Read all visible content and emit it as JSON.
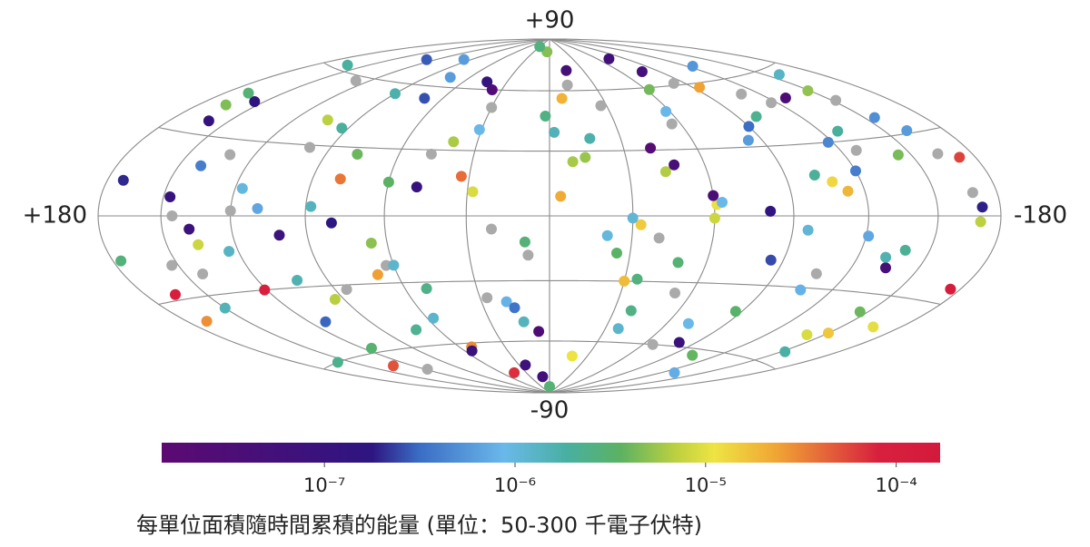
{
  "chart_data": {
    "type": "scatter",
    "projection": "hammer-aitoff",
    "xlim": [
      180,
      -180
    ],
    "ylim": [
      -90,
      90
    ],
    "xticks": [
      {
        "value": 180,
        "label": "+180"
      },
      {
        "value": -180,
        "label": "-180"
      }
    ],
    "yticks": [
      {
        "value": 90,
        "label": "+90"
      },
      {
        "value": -90,
        "label": "-90"
      }
    ],
    "grid": true,
    "xgrid": [
      150,
      120,
      90,
      60,
      30,
      0,
      -30,
      -60,
      -90,
      -120,
      -150
    ],
    "ygrid": [
      60,
      30,
      0,
      -30,
      -60
    ],
    "missing_color": "#aaaaaa",
    "x": [
      172,
      150,
      128,
      101,
      77,
      52,
      31,
      8,
      -15,
      -38,
      -61,
      -84,
      -107,
      -129,
      -152,
      -170,
      165,
      140,
      118,
      93,
      66,
      44,
      19,
      -4,
      -27,
      -49,
      -73,
      -96,
      -118,
      -141,
      -163,
      176,
      155,
      133,
      109,
      85,
      60,
      36,
      13,
      -9,
      -33,
      -56,
      -80,
      -102,
      -124,
      -146,
      -168,
      160,
      136,
      112,
      90,
      68,
      47,
      24,
      2,
      -21,
      -44,
      -66,
      -90,
      -113,
      -135,
      -158,
      168,
      145,
      121,
      97,
      72,
      49,
      27,
      5,
      -18,
      -41,
      -63,
      -87,
      -110,
      -132,
      -155,
      -175,
      158,
      131,
      104,
      80,
      57,
      33,
      11,
      -12,
      -35,
      -58,
      -81,
      -104,
      -127,
      -149,
      170,
      147,
      124,
      99,
      74,
      51,
      28,
      6,
      -17,
      -40,
      -62,
      -85,
      -108,
      -130,
      -152,
      -172,
      162,
      138,
      115,
      88,
      63,
      40,
      16,
      -7,
      -30,
      -53,
      -77,
      -99,
      -121,
      -144,
      -166,
      153,
      127,
      103,
      79,
      55,
      30,
      9,
      -14,
      -37,
      -60,
      -83,
      -106,
      -128,
      -150,
      -171,
      166,
      142,
      117,
      94,
      70,
      45,
      21,
      -2,
      -25,
      -48,
      -71,
      -94,
      -117,
      -139,
      -161,
      0,
      60,
      -60,
      120,
      -120,
      30,
      -30
    ],
    "y": [
      12,
      -35,
      58,
      -8,
      27,
      -62,
      40,
      -18,
      71,
      -44,
      5,
      33,
      -24,
      49,
      -55,
      -2,
      -28,
      19,
      -70,
      38,
      -12,
      64,
      -40,
      9,
      52,
      -21,
      76,
      -6,
      30,
      -48,
      22,
      -15,
      44,
      -66,
      3,
      -32,
      15,
      60,
      -50,
      25,
      -4,
      42,
      -58,
      17,
      67,
      -37,
      8,
      35,
      -11,
      -45,
      55,
      -26,
      28,
      -73,
      47,
      -9,
      20,
      -60,
      39,
      10,
      -20,
      57,
      46,
      0,
      -30,
      74,
      -52,
      13,
      -38,
      82,
      -68,
      31,
      6,
      -42,
      53,
      -16,
      37,
      -25,
      -60,
      24,
      41,
      -3,
      -47,
      18,
      -80,
      63,
      -29,
      48,
      2,
      -63,
      26,
      50,
      -38,
      7,
      -14,
      29,
      65,
      -33,
      11,
      -55,
      36,
      -10,
      59,
      -19,
      14,
      -71,
      45,
      20,
      62,
      -5,
      -58,
      4,
      -22,
      34,
      -43,
      56,
      -1,
      -35,
      68,
      43,
      -8,
      23,
      -41,
      -18,
      71,
      -27,
      16,
      -64,
      51,
      -12,
      27,
      -53,
      9,
      61,
      -31,
      34,
      -46,
      3,
      41,
      -22,
      11,
      -36,
      54,
      -77,
      -6,
      39,
      -17,
      23,
      -49,
      58,
      48,
      -13,
      31,
      -86,
      -22,
      -1,
      2,
      18,
      85,
      -30
    ],
    "c": [
      2e-07,
      1.5e-06,
      null,
      8e-08,
      4e-06,
      3e-05,
      9e-07,
      null,
      5e-08,
      2.5e-06,
      1.2e-05,
      6e-07,
      null,
      3e-08,
      1.8e-06,
      7e-06,
      0.0001,
      4e-07,
      null,
      2e-06,
      5e-06,
      1.3e-07,
      8e-07,
      2.2e-05,
      null,
      3e-06,
      6e-08,
      1.1e-06,
      4.5e-07,
      9e-06,
      null,
      2.8e-06,
      1.6e-07,
      5e-05,
      7e-07,
      null,
      3.5e-06,
      2.4e-08,
      1.4e-06,
      6e-06,
      1.5e-05,
      null,
      9e-08,
      2.1e-06,
      5.5e-07,
      4e-06,
      null,
      1.2e-07,
      8e-06,
      3e-07,
      1.7e-06,
      2.5e-05,
      null,
      7e-08,
      2.6e-06,
      1e-06,
      6.5e-06,
      null,
      3.2e-07,
      1.9e-05,
      4e-08,
      1.3e-06,
      3e-06,
      null,
      8e-05,
      6e-07,
      2.2e-06,
      1e-07,
      null,
      4.8e-06,
      1.1e-05,
      2e-08,
      9e-07,
      3.3e-06,
      null,
      1.6e-06,
      5e-07,
      0.00014,
      2.3e-06,
      null,
      7e-06,
      1.8e-07,
      1.2e-06,
      4e-05,
      6e-08,
      null,
      2.7e-06,
      8.5e-07,
      1.5e-07,
      3.8e-06,
      null,
      5.2e-06,
      2.9e-05,
      1.1e-07,
      1.3e-06,
      null,
      6e-07,
      2.4e-06,
      9e-06,
      3e-08,
      1.7e-06,
      null,
      4.2e-06,
      2.5e-07,
      1.3e-05,
      7.5e-07,
      null,
      5.8e-05,
      1.9e-06,
      8e-08,
      3.1e-06,
      1.4e-06,
      null,
      6.2e-06,
      3.5e-07,
      2e-05,
      1.1e-06,
      null,
      5e-08,
      2.2e-06,
      7e-07,
      4.4e-06,
      1e-05,
      null,
      2.8e-07,
      1.6e-06,
      3.6e-05,
      9.5e-08,
      null,
      2.9e-06,
      5.5e-06,
      1.2e-06,
      3.7e-08,
      null,
      8e-07,
      2e-06,
      1.6e-05,
      1.9e-07,
      4.6e-06,
      null,
      1e-06,
      6.8e-06,
      2.6e-07,
      7e-05,
      null,
      1.5e-06,
      3.4e-06,
      4.5e-08,
      9e-07,
      2.4e-05,
      null,
      2.1e-06,
      5.9e-07,
      3e-06,
      1.2e-06,
      8e-06,
      null,
      4e-07,
      2.7e-06,
      1.8e-05
    ],
    "colorbar": {
      "title": "每單位面積隨時間累積的能量 (單位：50-300 千電子伏特)",
      "log": true,
      "lim": [
        1.4e-08,
        0.00017
      ],
      "ticks": [
        {
          "value": 1e-07,
          "label": "10⁻⁷"
        },
        {
          "value": 1e-06,
          "label": "10⁻⁶"
        },
        {
          "value": 1e-05,
          "label": "10⁻⁵"
        },
        {
          "value": 0.0001,
          "label": "10⁻⁴"
        }
      ],
      "colors": [
        {
          "offset": 0,
          "color": "#5c0a72"
        },
        {
          "offset": 0.27,
          "color": "#2e1580"
        },
        {
          "offset": 0.33,
          "color": "#3a6cc4"
        },
        {
          "offset": 0.44,
          "color": "#6ab8ea"
        },
        {
          "offset": 0.52,
          "color": "#48b0a2"
        },
        {
          "offset": 0.59,
          "color": "#5cb262"
        },
        {
          "offset": 0.66,
          "color": "#bcd040"
        },
        {
          "offset": 0.71,
          "color": "#eee443"
        },
        {
          "offset": 0.79,
          "color": "#f0a534"
        },
        {
          "offset": 0.92,
          "color": "#d8203e"
        },
        {
          "offset": 1,
          "color": "#d41a3c"
        }
      ]
    }
  }
}
